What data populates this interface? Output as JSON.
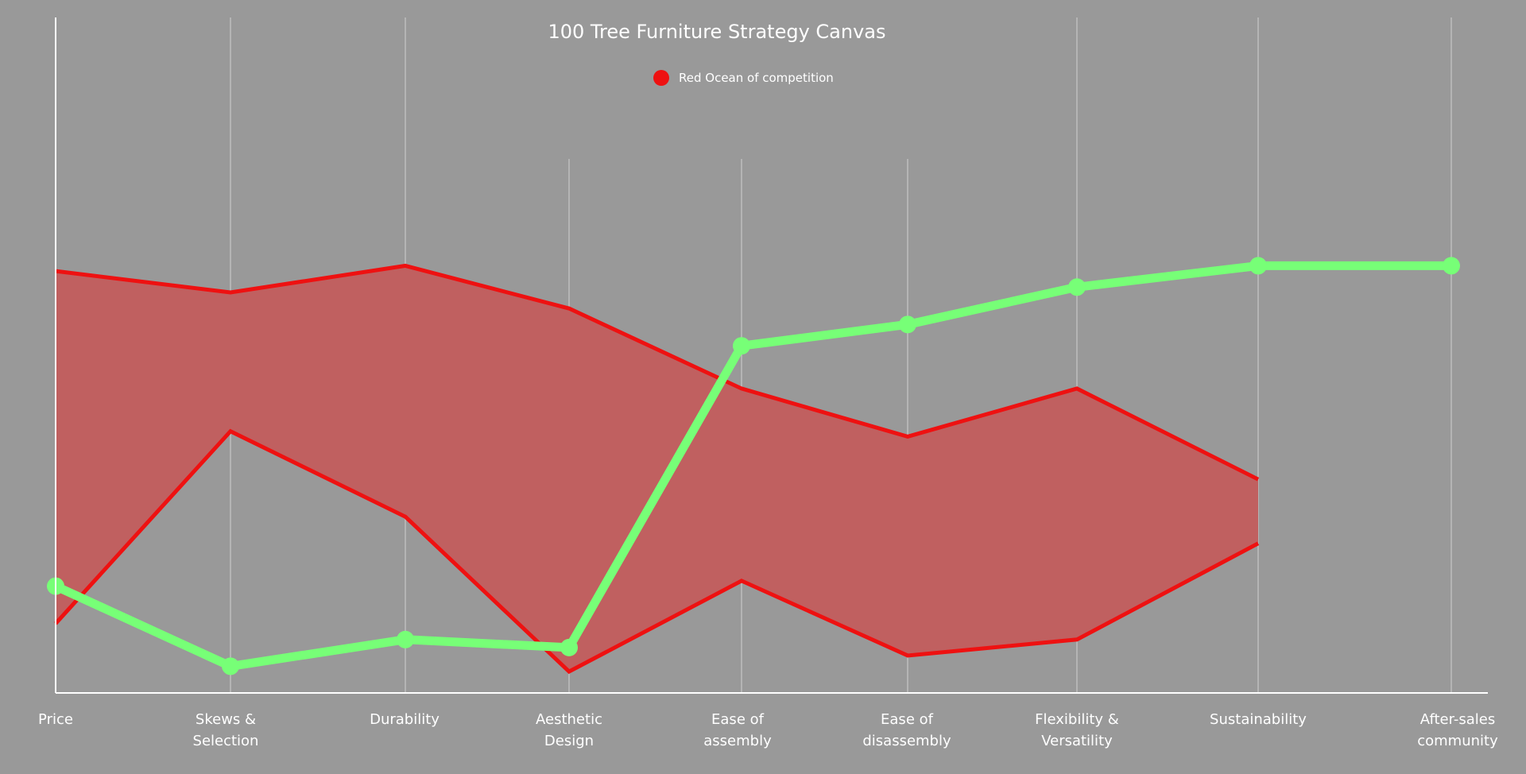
{
  "chart_data": {
    "type": "line",
    "title": "100 Tree Furniture Strategy Canvas",
    "xlabel": "",
    "ylabel": "",
    "ylim": [
      0,
      10
    ],
    "grid": true,
    "legend_position": "top-center",
    "categories": [
      "Price",
      "Skews & Selection",
      "Durability",
      "Aesthetic Design",
      "Ease of assembly",
      "Ease of disassembly",
      "Flexibility & Versatility",
      "Sustainability",
      "After-sales community"
    ],
    "tick_labels": [
      [
        "Price"
      ],
      [
        "Skews &",
        "Selection"
      ],
      [
        "Durability"
      ],
      [
        "Aesthetic",
        "Design"
      ],
      [
        "Ease of",
        "assembly"
      ],
      [
        "Ease of",
        "disassembly"
      ],
      [
        "Flexibility &",
        "Versatility"
      ],
      [
        "Sustainability"
      ],
      [
        "After-sales",
        "community"
      ]
    ],
    "band": {
      "name": "Red Ocean of competition",
      "upper": [
        7.9,
        7.5,
        8.0,
        7.2,
        5.7,
        4.8,
        5.7,
        4.0,
        null
      ],
      "lower": [
        1.3,
        4.9,
        3.3,
        0.4,
        2.1,
        0.7,
        1.0,
        2.8,
        null
      ]
    },
    "series": [
      {
        "values": [
          2.0,
          0.5,
          1.0,
          0.85,
          6.5,
          6.9,
          7.6,
          8.0,
          8.0
        ]
      }
    ]
  },
  "colors": {
    "background": "#999999",
    "band_line": "#ee1111",
    "band_fill": "#c06060",
    "company_line": "#77ff77",
    "axis": "#ffffff",
    "grid": "#d0d0d0"
  }
}
